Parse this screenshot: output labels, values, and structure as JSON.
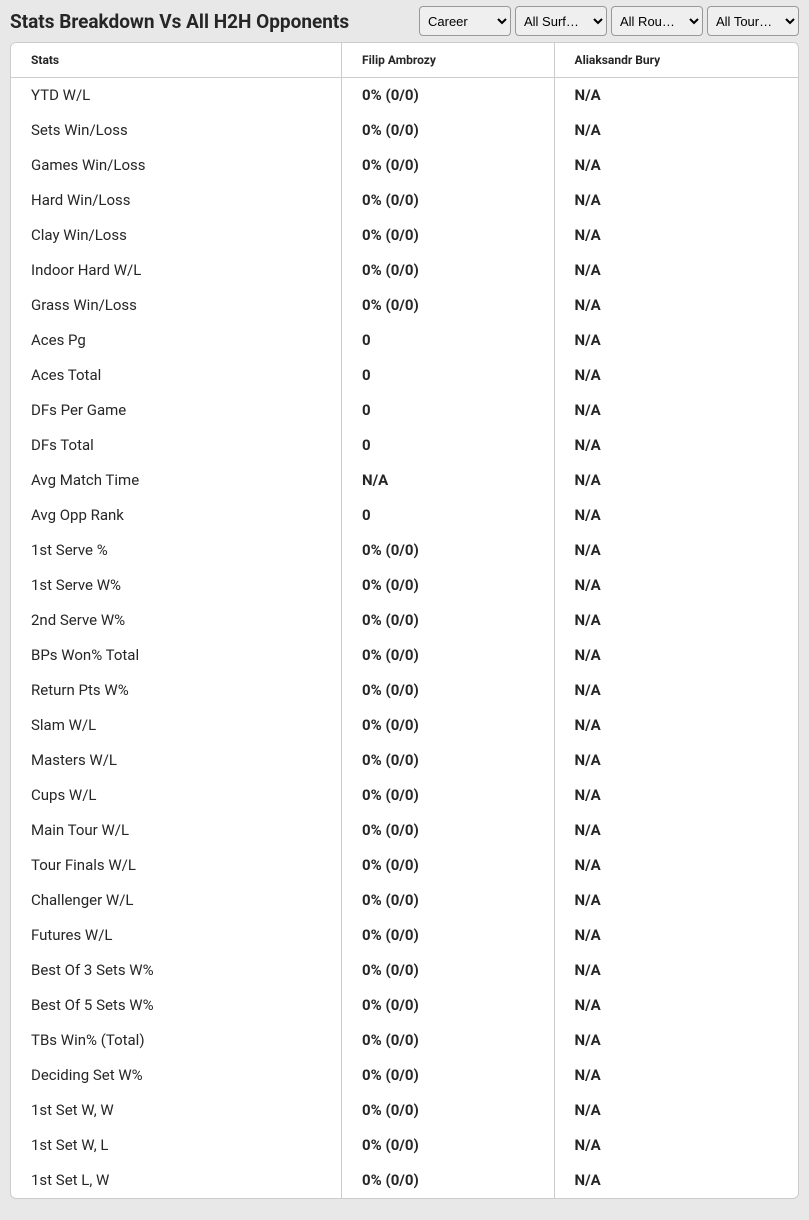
{
  "header": {
    "title": "Stats Breakdown Vs All H2H Opponents"
  },
  "filters": {
    "period": {
      "selected": "Career",
      "options": [
        "Career"
      ]
    },
    "surface": {
      "selected": "All Surf…",
      "options": [
        "All Surf…"
      ]
    },
    "round": {
      "selected": "All Rou…",
      "options": [
        "All Rou…"
      ]
    },
    "tournament": {
      "selected": "All Tour…",
      "options": [
        "All Tour…"
      ]
    }
  },
  "table": {
    "columns": [
      "Stats",
      "Filip Ambrozy",
      "Aliaksandr Bury"
    ],
    "rows": [
      {
        "label": "YTD W/L",
        "p1": "0% (0/0)",
        "p2": "N/A"
      },
      {
        "label": "Sets Win/Loss",
        "p1": "0% (0/0)",
        "p2": "N/A"
      },
      {
        "label": "Games Win/Loss",
        "p1": "0% (0/0)",
        "p2": "N/A"
      },
      {
        "label": "Hard Win/Loss",
        "p1": "0% (0/0)",
        "p2": "N/A"
      },
      {
        "label": "Clay Win/Loss",
        "p1": "0% (0/0)",
        "p2": "N/A"
      },
      {
        "label": "Indoor Hard W/L",
        "p1": "0% (0/0)",
        "p2": "N/A"
      },
      {
        "label": "Grass Win/Loss",
        "p1": "0% (0/0)",
        "p2": "N/A"
      },
      {
        "label": "Aces Pg",
        "p1": "0",
        "p2": "N/A"
      },
      {
        "label": "Aces Total",
        "p1": "0",
        "p2": "N/A"
      },
      {
        "label": "DFs Per Game",
        "p1": "0",
        "p2": "N/A"
      },
      {
        "label": "DFs Total",
        "p1": "0",
        "p2": "N/A"
      },
      {
        "label": "Avg Match Time",
        "p1": "N/A",
        "p2": "N/A"
      },
      {
        "label": "Avg Opp Rank",
        "p1": "0",
        "p2": "N/A"
      },
      {
        "label": "1st Serve %",
        "p1": "0% (0/0)",
        "p2": "N/A"
      },
      {
        "label": "1st Serve W%",
        "p1": "0% (0/0)",
        "p2": "N/A"
      },
      {
        "label": "2nd Serve W%",
        "p1": "0% (0/0)",
        "p2": "N/A"
      },
      {
        "label": "BPs Won% Total",
        "p1": "0% (0/0)",
        "p2": "N/A"
      },
      {
        "label": "Return Pts W%",
        "p1": "0% (0/0)",
        "p2": "N/A"
      },
      {
        "label": "Slam W/L",
        "p1": "0% (0/0)",
        "p2": "N/A"
      },
      {
        "label": "Masters W/L",
        "p1": "0% (0/0)",
        "p2": "N/A"
      },
      {
        "label": "Cups W/L",
        "p1": "0% (0/0)",
        "p2": "N/A"
      },
      {
        "label": "Main Tour W/L",
        "p1": "0% (0/0)",
        "p2": "N/A"
      },
      {
        "label": "Tour Finals W/L",
        "p1": "0% (0/0)",
        "p2": "N/A"
      },
      {
        "label": "Challenger W/L",
        "p1": "0% (0/0)",
        "p2": "N/A"
      },
      {
        "label": "Futures W/L",
        "p1": "0% (0/0)",
        "p2": "N/A"
      },
      {
        "label": "Best Of 3 Sets W%",
        "p1": "0% (0/0)",
        "p2": "N/A"
      },
      {
        "label": "Best Of 5 Sets W%",
        "p1": "0% (0/0)",
        "p2": "N/A"
      },
      {
        "label": "TBs Win% (Total)",
        "p1": "0% (0/0)",
        "p2": "N/A"
      },
      {
        "label": "Deciding Set W%",
        "p1": "0% (0/0)",
        "p2": "N/A"
      },
      {
        "label": "1st Set W, W",
        "p1": "0% (0/0)",
        "p2": "N/A"
      },
      {
        "label": "1st Set W, L",
        "p1": "0% (0/0)",
        "p2": "N/A"
      },
      {
        "label": "1st Set L, W",
        "p1": "0% (0/0)",
        "p2": "N/A"
      }
    ]
  }
}
